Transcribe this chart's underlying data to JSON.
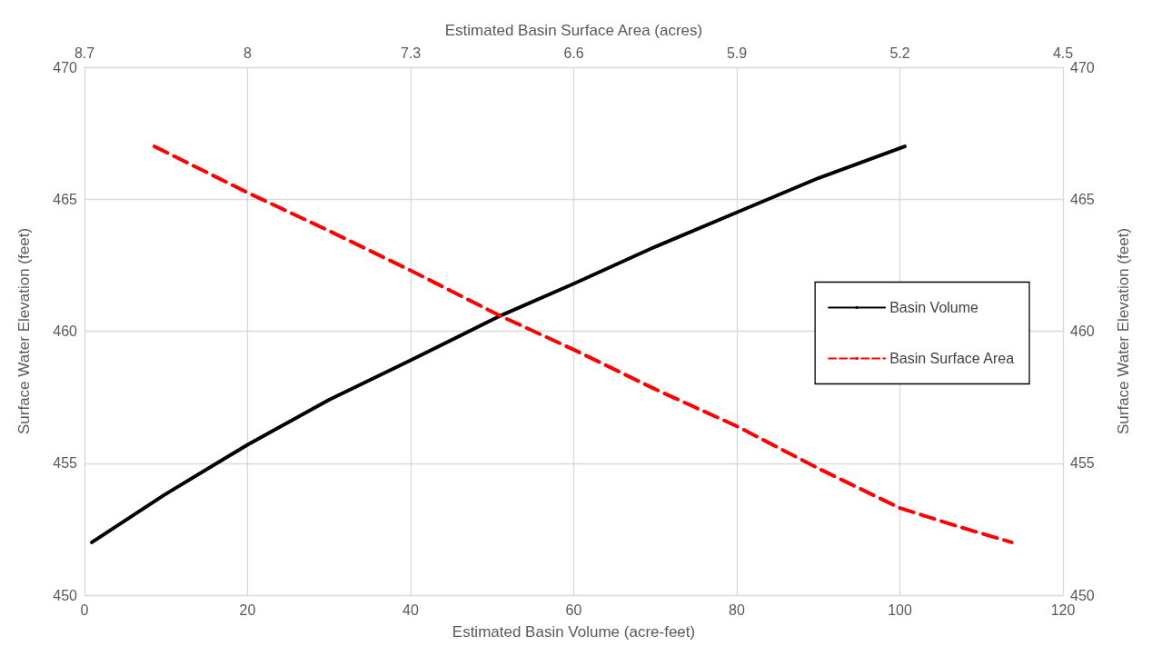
{
  "chart_data": {
    "type": "line",
    "xlabel": "Estimated Basin Volume (acre-feet)",
    "x2label": "Estimated Basin Surface Area (acres)",
    "ylabel": "Surface Water Elevation (feet)",
    "y2label": "Surface Water Elevation (feet)",
    "xlim": [
      0,
      120
    ],
    "xticks": [
      0,
      20,
      40,
      60,
      80,
      100,
      120
    ],
    "x2lim": [
      8.7,
      4.5
    ],
    "x2ticks": [
      8.7,
      8,
      7.3,
      6.6,
      5.9,
      5.2,
      4.5
    ],
    "ylim": [
      450,
      470
    ],
    "yticks": [
      450,
      455,
      460,
      465,
      470
    ],
    "y2lim": [
      450,
      470
    ],
    "y2ticks": [
      450,
      455,
      460,
      465,
      470
    ],
    "grid": true,
    "legend": "right",
    "marker": "none",
    "series": [
      {
        "name": "Basin Volume",
        "color": "#000000",
        "line_style": "solid",
        "x": [
          0.9,
          9.8,
          20,
          30,
          40,
          51.1,
          60,
          70,
          80,
          90,
          100.6
        ],
        "values": [
          452,
          453.8,
          455.7,
          457.4,
          458.9,
          460.6,
          461.8,
          463.2,
          464.5,
          465.8,
          467
        ]
      },
      {
        "name": "Basin Surface Area",
        "color": "#ff0000",
        "line_style": "dashed",
        "axis": "x2",
        "x": [
          8.4,
          8.0,
          7.65,
          7.3,
          6.92,
          6.6,
          6.25,
          5.9,
          5.55,
          5.2,
          4.95,
          4.72
        ],
        "values": [
          467,
          465.25,
          463.8,
          462.3,
          460.6,
          459.3,
          457.8,
          456.4,
          454.8,
          453.3,
          452.6,
          452
        ]
      }
    ]
  }
}
